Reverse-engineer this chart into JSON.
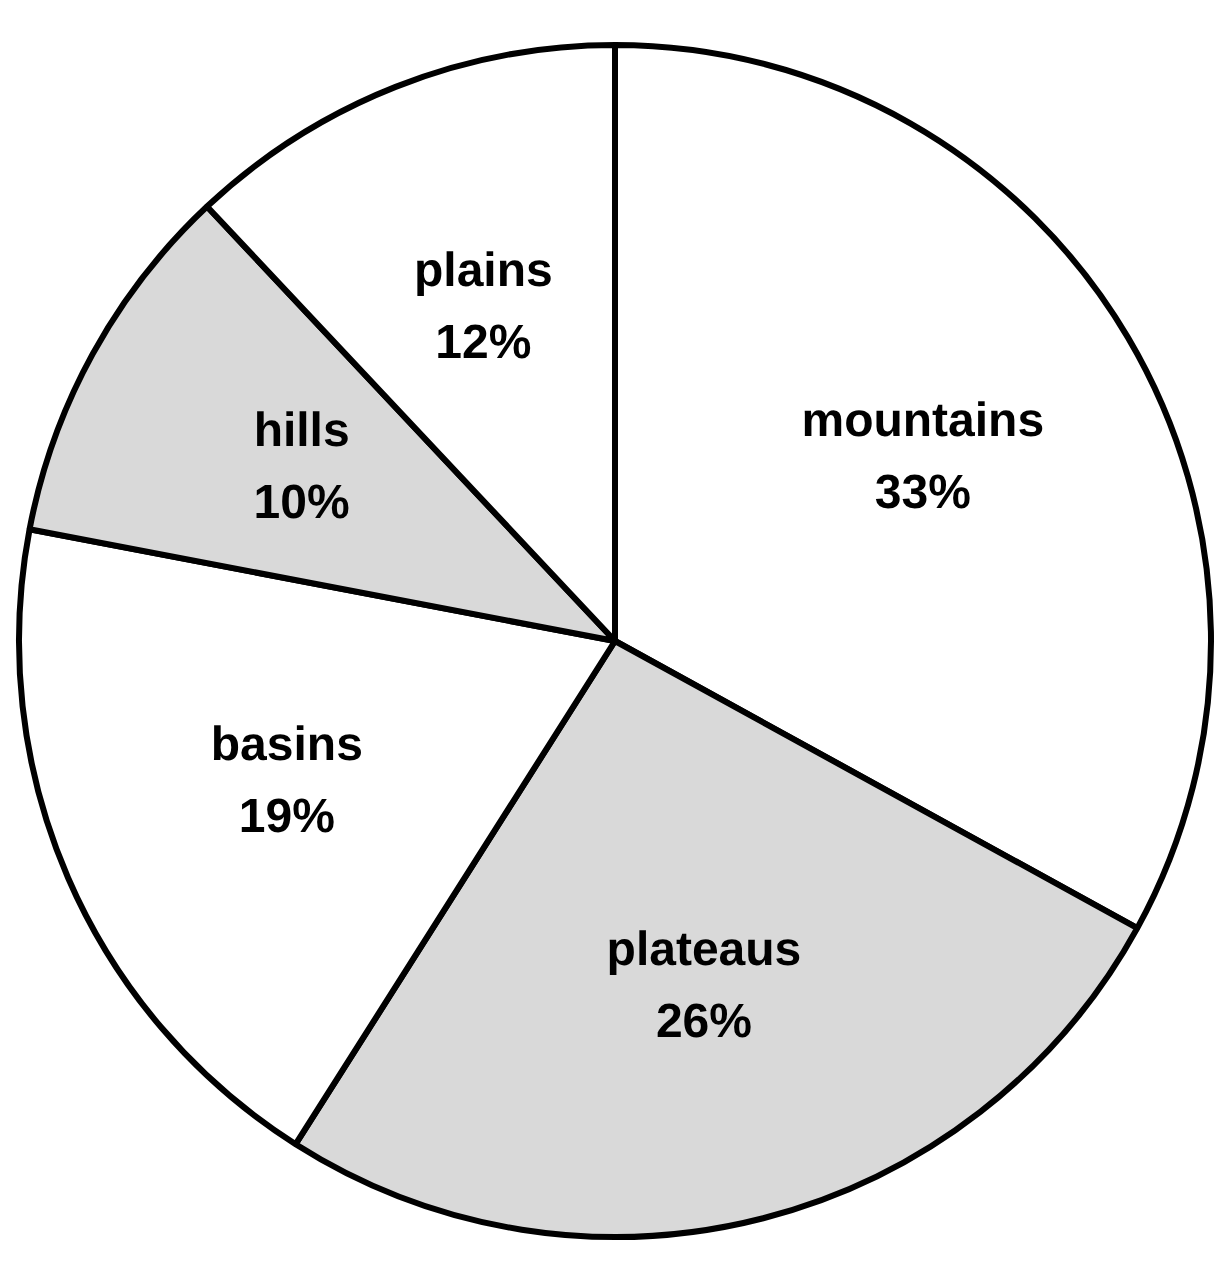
{
  "chart_data": {
    "type": "pie",
    "categories": [
      "mountains",
      "plateaus",
      "basins",
      "hills",
      "plains"
    ],
    "values": [
      33,
      26,
      19,
      10,
      12
    ],
    "value_labels": [
      "33%",
      "26%",
      "19%",
      "10%",
      "12%"
    ],
    "colors": [
      "#ffffff",
      "#d9d9d9",
      "#ffffff",
      "#d9d9d9",
      "#ffffff"
    ],
    "legend": false
  }
}
